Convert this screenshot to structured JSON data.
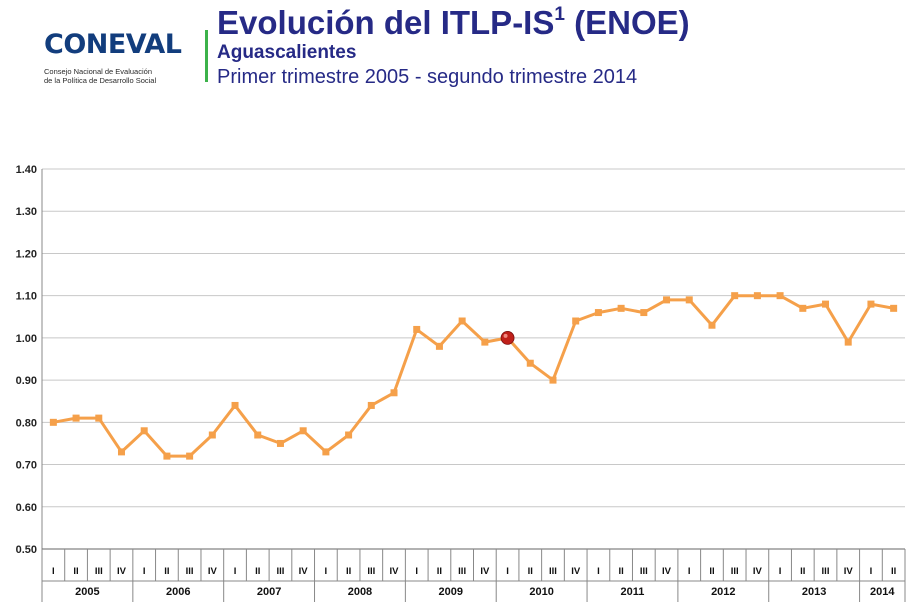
{
  "header": {
    "logo_text": "CONEVAL",
    "logo_subtitle_line1": "Consejo Nacional de Evaluación",
    "logo_subtitle_line2": "de la Política de Desarrollo Social",
    "title": "Evolución del ITLP-IS",
    "title_superscript": "1",
    "title_suffix": "(ENOE)",
    "subtitle": "Aguascalientes",
    "period": "Primer trimestre 2005 - segundo trimestre 2014"
  },
  "colors": {
    "line": "#f5a04a",
    "marker": "#f5a04a",
    "highlight_marker": "#c0201a",
    "title": "#262a86",
    "logo": "#123d7d",
    "accent_rule": "#3cb24a",
    "grid": "#c8c8c8"
  },
  "chart_data": {
    "type": "line",
    "title": "",
    "xlabel": "",
    "ylabel": "",
    "ylim": [
      0.5,
      1.4
    ],
    "yticks": [
      "0.50",
      "0.60",
      "0.70",
      "0.80",
      "0.90",
      "1.00",
      "1.10",
      "1.20",
      "1.30",
      "1.40"
    ],
    "grid": true,
    "years": [
      "2005",
      "2006",
      "2007",
      "2008",
      "2009",
      "2010",
      "2011",
      "2012",
      "2013",
      "2014"
    ],
    "quarter_labels": [
      "I",
      "II",
      "III",
      "IV"
    ],
    "categories": [
      "2005-I",
      "2005-II",
      "2005-III",
      "2005-IV",
      "2006-I",
      "2006-II",
      "2006-III",
      "2006-IV",
      "2007-I",
      "2007-II",
      "2007-III",
      "2007-IV",
      "2008-I",
      "2008-II",
      "2008-III",
      "2008-IV",
      "2009-I",
      "2009-II",
      "2009-III",
      "2009-IV",
      "2010-I",
      "2010-II",
      "2010-III",
      "2010-IV",
      "2011-I",
      "2011-II",
      "2011-III",
      "2011-IV",
      "2012-I",
      "2012-II",
      "2012-III",
      "2012-IV",
      "2013-I",
      "2013-II",
      "2013-III",
      "2013-IV",
      "2014-I",
      "2014-II"
    ],
    "values": [
      0.8,
      0.81,
      0.81,
      0.73,
      0.78,
      0.72,
      0.72,
      0.77,
      0.84,
      0.77,
      0.75,
      0.78,
      0.73,
      0.77,
      0.84,
      0.87,
      1.02,
      0.98,
      1.04,
      0.99,
      1.0,
      0.94,
      0.9,
      1.04,
      1.06,
      1.07,
      1.06,
      1.09,
      1.09,
      1.03,
      1.1,
      1.1,
      1.1,
      1.07,
      1.08,
      0.99,
      1.08,
      1.07
    ],
    "highlight_index": 20
  }
}
